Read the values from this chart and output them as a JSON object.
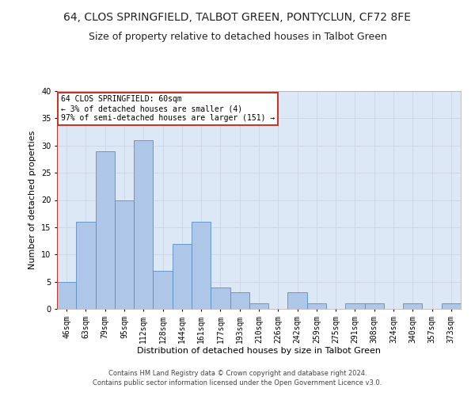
{
  "title1": "64, CLOS SPRINGFIELD, TALBOT GREEN, PONTYCLUN, CF72 8FE",
  "title2": "Size of property relative to detached houses in Talbot Green",
  "xlabel": "Distribution of detached houses by size in Talbot Green",
  "ylabel": "Number of detached properties",
  "footer1": "Contains HM Land Registry data © Crown copyright and database right 2024.",
  "footer2": "Contains public sector information licensed under the Open Government Licence v3.0.",
  "annotation_title": "64 CLOS SPRINGFIELD: 60sqm",
  "annotation_line2": "← 3% of detached houses are smaller (4)",
  "annotation_line3": "97% of semi-detached houses are larger (151) →",
  "bar_color": "#aec6e8",
  "bar_edge_color": "#5a8fc2",
  "vline_color": "#c0392b",
  "annotation_box_color": "#ffffff",
  "annotation_box_edge": "#c0392b",
  "categories": [
    "46sqm",
    "63sqm",
    "79sqm",
    "95sqm",
    "112sqm",
    "128sqm",
    "144sqm",
    "161sqm",
    "177sqm",
    "193sqm",
    "210sqm",
    "226sqm",
    "242sqm",
    "259sqm",
    "275sqm",
    "291sqm",
    "308sqm",
    "324sqm",
    "340sqm",
    "357sqm",
    "373sqm"
  ],
  "values": [
    5,
    16,
    29,
    20,
    31,
    7,
    12,
    16,
    4,
    3,
    1,
    0,
    3,
    1,
    0,
    1,
    1,
    0,
    1,
    0,
    1
  ],
  "ylim": [
    0,
    40
  ],
  "yticks": [
    0,
    5,
    10,
    15,
    20,
    25,
    30,
    35,
    40
  ],
  "grid_color": "#d0d8e8",
  "bg_color": "#dce8f5",
  "title_fontsize": 10,
  "subtitle_fontsize": 9,
  "axis_label_fontsize": 8,
  "tick_fontsize": 7,
  "footer_fontsize": 6,
  "annotation_fontsize": 7
}
